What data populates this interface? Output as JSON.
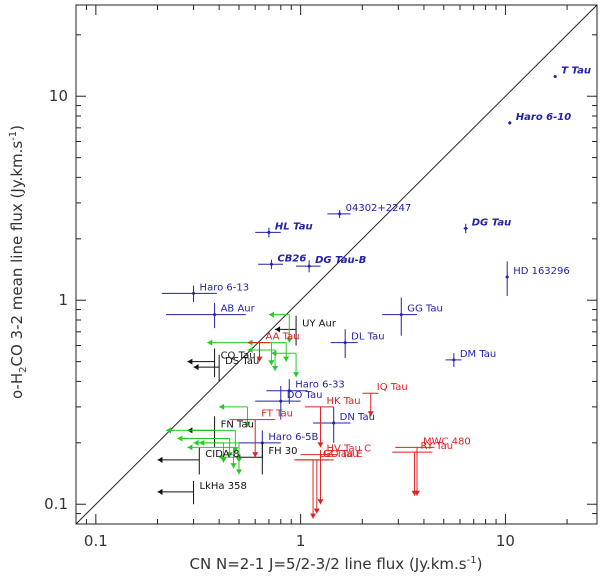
{
  "chart_data": {
    "type": "scatter",
    "title": "",
    "xlabel": "CN N=2-1 J=5/2-3/2 line flux (Jy.km.s",
    "xlabel_sup": "-1",
    "xlabel_tail": ")",
    "ylabel": "o-H",
    "ylabel_sub": "2",
    "ylabel_mid": "CO 3-2 mean line flux (Jy.km.s",
    "ylabel_sup": "-1",
    "ylabel_tail": ")",
    "xscale": "log",
    "yscale": "log",
    "xlim": [
      0.08,
      28
    ],
    "ylim": [
      0.08,
      28
    ],
    "x_ticks": [
      {
        "v": 0.1,
        "label": "0.1"
      },
      {
        "v": 1,
        "label": "1"
      },
      {
        "v": 10,
        "label": "10"
      }
    ],
    "y_ticks": [
      {
        "v": 0.1,
        "label": "0.1"
      },
      {
        "v": 1,
        "label": "1"
      },
      {
        "v": 10,
        "label": "10"
      }
    ],
    "diagonal": "y = x",
    "colors": {
      "blue": "#2222aa",
      "black": "#111111",
      "green": "#22cc22",
      "red": "#dd2222"
    },
    "points": [
      {
        "name": "T Tau",
        "x": 17.5,
        "y": 12.5,
        "xerr": 0.3,
        "yerr": 0.2,
        "color": "blue",
        "style": "italic"
      },
      {
        "name": "Haro 6-10",
        "x": 10.5,
        "y": 7.4,
        "xerr": 0.2,
        "yerr": 0.15,
        "color": "blue",
        "style": "italic"
      },
      {
        "name": "04302+2247",
        "x": 1.55,
        "y": 2.65,
        "xerr": 0.2,
        "yerr": 0.12,
        "color": "blue",
        "style": "normal"
      },
      {
        "name": "HL Tau",
        "x": 0.7,
        "y": 2.15,
        "xerr": 0.1,
        "yerr": 0.12,
        "color": "blue",
        "style": "italic"
      },
      {
        "name": "DG Tau",
        "x": 6.4,
        "y": 2.25,
        "xerr": 0.15,
        "yerr": 0.12,
        "color": "blue",
        "style": "italic"
      },
      {
        "name": "CB26",
        "x": 0.72,
        "y": 1.5,
        "xerr": 0.1,
        "yerr": 0.08,
        "color": "blue",
        "style": "italic"
      },
      {
        "name": "DG Tau-B",
        "x": 1.1,
        "y": 1.47,
        "xerr": 0.15,
        "yerr": 0.1,
        "color": "blue",
        "style": "italic"
      },
      {
        "name": "Haro 6-13",
        "x": 0.3,
        "y": 1.08,
        "xerr": 0.09,
        "yerr": 0.1,
        "color": "blue",
        "style": "normal"
      },
      {
        "name": "HD 163296",
        "x": 10.2,
        "y": 1.3,
        "xerr": 0.2,
        "yerr": 0.25,
        "color": "blue",
        "style": "normal"
      },
      {
        "name": "AB Aur",
        "x": 0.38,
        "y": 0.85,
        "xerr": 0.16,
        "yerr": 0.12,
        "color": "blue",
        "style": "normal"
      },
      {
        "name": "GG Tau",
        "x": 3.1,
        "y": 0.85,
        "xerr": 0.6,
        "yerr": 0.18,
        "color": "blue",
        "style": "normal"
      },
      {
        "name": "DL Tau",
        "x": 1.65,
        "y": 0.62,
        "xerr": 0.25,
        "yerr": 0.1,
        "color": "blue",
        "style": "normal"
      },
      {
        "name": "DM Tau",
        "x": 5.6,
        "y": 0.51,
        "xerr": 0.5,
        "yerr": 0.04,
        "color": "blue",
        "style": "normal"
      },
      {
        "name": "Haro 6-33",
        "x": 0.88,
        "y": 0.36,
        "xerr": 0.2,
        "yerr": 0.05,
        "color": "blue",
        "style": "normal"
      },
      {
        "name": "DO Tau",
        "x": 0.8,
        "y": 0.32,
        "xerr": 0.2,
        "yerr": 0.06,
        "color": "blue",
        "style": "normal"
      },
      {
        "name": "DN Tau",
        "x": 1.45,
        "y": 0.25,
        "xerr": 0.3,
        "yerr": 0.05,
        "color": "blue",
        "style": "normal"
      },
      {
        "name": "Haro 6-5B",
        "x": 0.65,
        "y": 0.2,
        "xerr": 0.15,
        "yerr": 0.03,
        "color": "blue",
        "style": "normal"
      }
    ],
    "x_upper_limits": [
      {
        "name": "UY Aur",
        "x": 0.95,
        "y": 0.72,
        "to": 0.75,
        "yerr": 0.12,
        "color": "black"
      },
      {
        "name": "CQ Tau",
        "x": 0.38,
        "y": 0.5,
        "to": 0.28,
        "yerr": 0.08,
        "color": "black"
      },
      {
        "name": "DS Tau",
        "x": 0.4,
        "y": 0.47,
        "to": 0.3,
        "yerr": 0.07,
        "color": "black"
      },
      {
        "name": "FN Tau",
        "x": 0.38,
        "y": 0.23,
        "to": 0.28,
        "yerr": 0.04,
        "color": "black"
      },
      {
        "name": "FH 30",
        "x": 0.65,
        "y": 0.17,
        "to": 0.48,
        "yerr": 0.03,
        "color": "black"
      },
      {
        "name": "CIDA-8",
        "x": 0.32,
        "y": 0.165,
        "to": 0.2,
        "yerr": 0.025,
        "color": "black"
      },
      {
        "name": "LkHa 358",
        "x": 0.3,
        "y": 0.115,
        "to": 0.2,
        "yerr": 0.015,
        "color": "black"
      }
    ],
    "upper_limits_both": [
      {
        "x": 0.88,
        "y": 0.85,
        "xto": 0.7,
        "yto": 0.62,
        "color": "green"
      },
      {
        "x": 0.85,
        "y": 0.62,
        "xto": 0.35,
        "yto": 0.5,
        "color": "green"
      },
      {
        "x": 0.75,
        "y": 0.57,
        "xto": 0.55,
        "yto": 0.45,
        "color": "green"
      },
      {
        "x": 0.95,
        "y": 0.55,
        "xto": 0.72,
        "yto": 0.42,
        "color": "green"
      },
      {
        "x": 0.72,
        "y": 0.62,
        "xto": 0.55,
        "yto": 0.48,
        "color": "green"
      },
      {
        "x": 0.55,
        "y": 0.3,
        "xto": 0.4,
        "yto": 0.24,
        "color": "green"
      },
      {
        "x": 0.48,
        "y": 0.23,
        "xto": 0.22,
        "yto": 0.18,
        "color": "green"
      },
      {
        "x": 0.45,
        "y": 0.21,
        "xto": 0.25,
        "yto": 0.17,
        "color": "green"
      },
      {
        "x": 0.5,
        "y": 0.2,
        "xto": 0.3,
        "yto": 0.16,
        "color": "green"
      },
      {
        "x": 0.47,
        "y": 0.19,
        "xto": 0.28,
        "yto": 0.15,
        "color": "green"
      },
      {
        "x": 0.42,
        "y": 0.2,
        "xto": 0.32,
        "yto": 0.16,
        "color": "green"
      },
      {
        "x": 0.5,
        "y": 0.17,
        "xto": 0.4,
        "yto": 0.14,
        "color": "green"
      }
    ],
    "y_upper_limits": [
      {
        "name": "AA Tau",
        "x": 0.63,
        "y": 0.62,
        "to": 0.5,
        "xerr": 0.08,
        "color": "red"
      },
      {
        "name": "IQ Tau",
        "x": 2.2,
        "y": 0.35,
        "to": 0.27,
        "xerr": 0.2,
        "color": "red"
      },
      {
        "name": "FT Tau",
        "x": 0.6,
        "y": 0.26,
        "to": 0.17,
        "xerr": 0.15,
        "color": "red"
      },
      {
        "name": "HK Tau",
        "x": 1.25,
        "y": 0.3,
        "to": 0.19,
        "xerr": 0.2,
        "color": "red"
      },
      {
        "name": "MWC 480",
        "x": 3.7,
        "y": 0.19,
        "to": 0.11,
        "xerr": 0.8,
        "color": "red"
      },
      {
        "name": "RY Tau",
        "x": 3.6,
        "y": 0.18,
        "to": 0.11,
        "xerr": 0.8,
        "color": "red"
      },
      {
        "name": "HV Tau C",
        "x": 1.25,
        "y": 0.175,
        "to": 0.1,
        "xerr": 0.25,
        "color": "red"
      },
      {
        "name": "GO Tau",
        "x": 1.2,
        "y": 0.165,
        "to": 0.09,
        "xerr": 0.25,
        "color": "red"
      },
      {
        "name": "UZ Tau E",
        "x": 1.15,
        "y": 0.165,
        "to": 0.085,
        "xerr": 0.22,
        "color": "red"
      }
    ],
    "visible_labels": [
      {
        "text": "T Tau",
        "x": 17.5,
        "y": 12.5,
        "color": "blue",
        "style": "italic"
      },
      {
        "text": "Haro 6-10",
        "x": 10.5,
        "y": 7.4,
        "color": "blue",
        "style": "italic"
      },
      {
        "text": "04302+2247",
        "x": 1.55,
        "y": 2.65,
        "color": "blue",
        "style": "normal"
      },
      {
        "text": "HL Tau",
        "x": 0.7,
        "y": 2.15,
        "color": "blue",
        "style": "italic"
      },
      {
        "text": "DG Tau",
        "x": 6.4,
        "y": 2.25,
        "color": "blue",
        "style": "italic"
      },
      {
        "text": "CB26",
        "x": 0.72,
        "y": 1.5,
        "color": "blue",
        "style": "italic"
      },
      {
        "text": "DG Tau-B",
        "x": 1.1,
        "y": 1.47,
        "color": "blue",
        "style": "italic"
      },
      {
        "text": "Haro 6-13",
        "x": 0.3,
        "y": 1.08,
        "color": "blue",
        "style": "normal"
      },
      {
        "text": "HD 163296",
        "x": 10.2,
        "y": 1.3,
        "color": "blue",
        "style": "normal"
      },
      {
        "text": "AB Aur",
        "x": 0.38,
        "y": 0.85,
        "color": "blue",
        "style": "normal"
      },
      {
        "text": "GG Tau",
        "x": 3.1,
        "y": 0.85,
        "color": "blue",
        "style": "normal"
      },
      {
        "text": "DL Tau",
        "x": 1.65,
        "y": 0.62,
        "color": "blue",
        "style": "normal"
      },
      {
        "text": "DM Tau",
        "x": 5.6,
        "y": 0.51,
        "color": "blue",
        "style": "normal"
      },
      {
        "text": "Haro 6-33",
        "x": 0.88,
        "y": 0.36,
        "color": "blue",
        "style": "normal"
      },
      {
        "text": "DO Tau",
        "x": 0.8,
        "y": 0.32,
        "color": "blue",
        "style": "normal"
      },
      {
        "text": "DN Tau",
        "x": 1.45,
        "y": 0.25,
        "color": "blue",
        "style": "normal"
      },
      {
        "text": "Haro 6-5B",
        "x": 0.65,
        "y": 0.2,
        "color": "blue",
        "style": "normal"
      },
      {
        "text": "UY Aur",
        "x": 0.95,
        "y": 0.72,
        "color": "black",
        "style": "normal"
      },
      {
        "text": "CQ Tau",
        "x": 0.38,
        "y": 0.5,
        "color": "black",
        "style": "normal"
      },
      {
        "text": "DS Tau",
        "x": 0.4,
        "y": 0.47,
        "color": "black",
        "style": "normal"
      },
      {
        "text": "FN Tau",
        "x": 0.38,
        "y": 0.23,
        "color": "black",
        "style": "normal"
      },
      {
        "text": "FH 30",
        "x": 0.65,
        "y": 0.17,
        "color": "black",
        "style": "normal"
      },
      {
        "text": "CIDA-8",
        "x": 0.32,
        "y": 0.165,
        "color": "black",
        "style": "normal"
      },
      {
        "text": "LkHa 358",
        "x": 0.3,
        "y": 0.115,
        "color": "black",
        "style": "normal"
      },
      {
        "text": "AA Tau",
        "x": 0.63,
        "y": 0.62,
        "color": "red",
        "style": "normal"
      },
      {
        "text": "IQ Tau",
        "x": 2.2,
        "y": 0.35,
        "color": "red",
        "style": "normal"
      },
      {
        "text": "FT Tau",
        "x": 0.6,
        "y": 0.26,
        "color": "red",
        "style": "normal"
      },
      {
        "text": "HK Tau",
        "x": 1.25,
        "y": 0.3,
        "color": "red",
        "style": "normal"
      },
      {
        "text": "MWC 480",
        "x": 3.7,
        "y": 0.19,
        "color": "red",
        "style": "normal"
      },
      {
        "text": "RY Tau",
        "x": 3.6,
        "y": 0.18,
        "color": "red",
        "style": "normal"
      },
      {
        "text": "HV Tau C",
        "x": 1.25,
        "y": 0.175,
        "color": "red",
        "style": "normal"
      },
      {
        "text": "GO Tau",
        "x": 1.2,
        "y": 0.165,
        "color": "red",
        "style": "normal"
      },
      {
        "text": "UZ Tau E",
        "x": 1.15,
        "y": 0.165,
        "color": "red",
        "style": "normal"
      }
    ]
  }
}
